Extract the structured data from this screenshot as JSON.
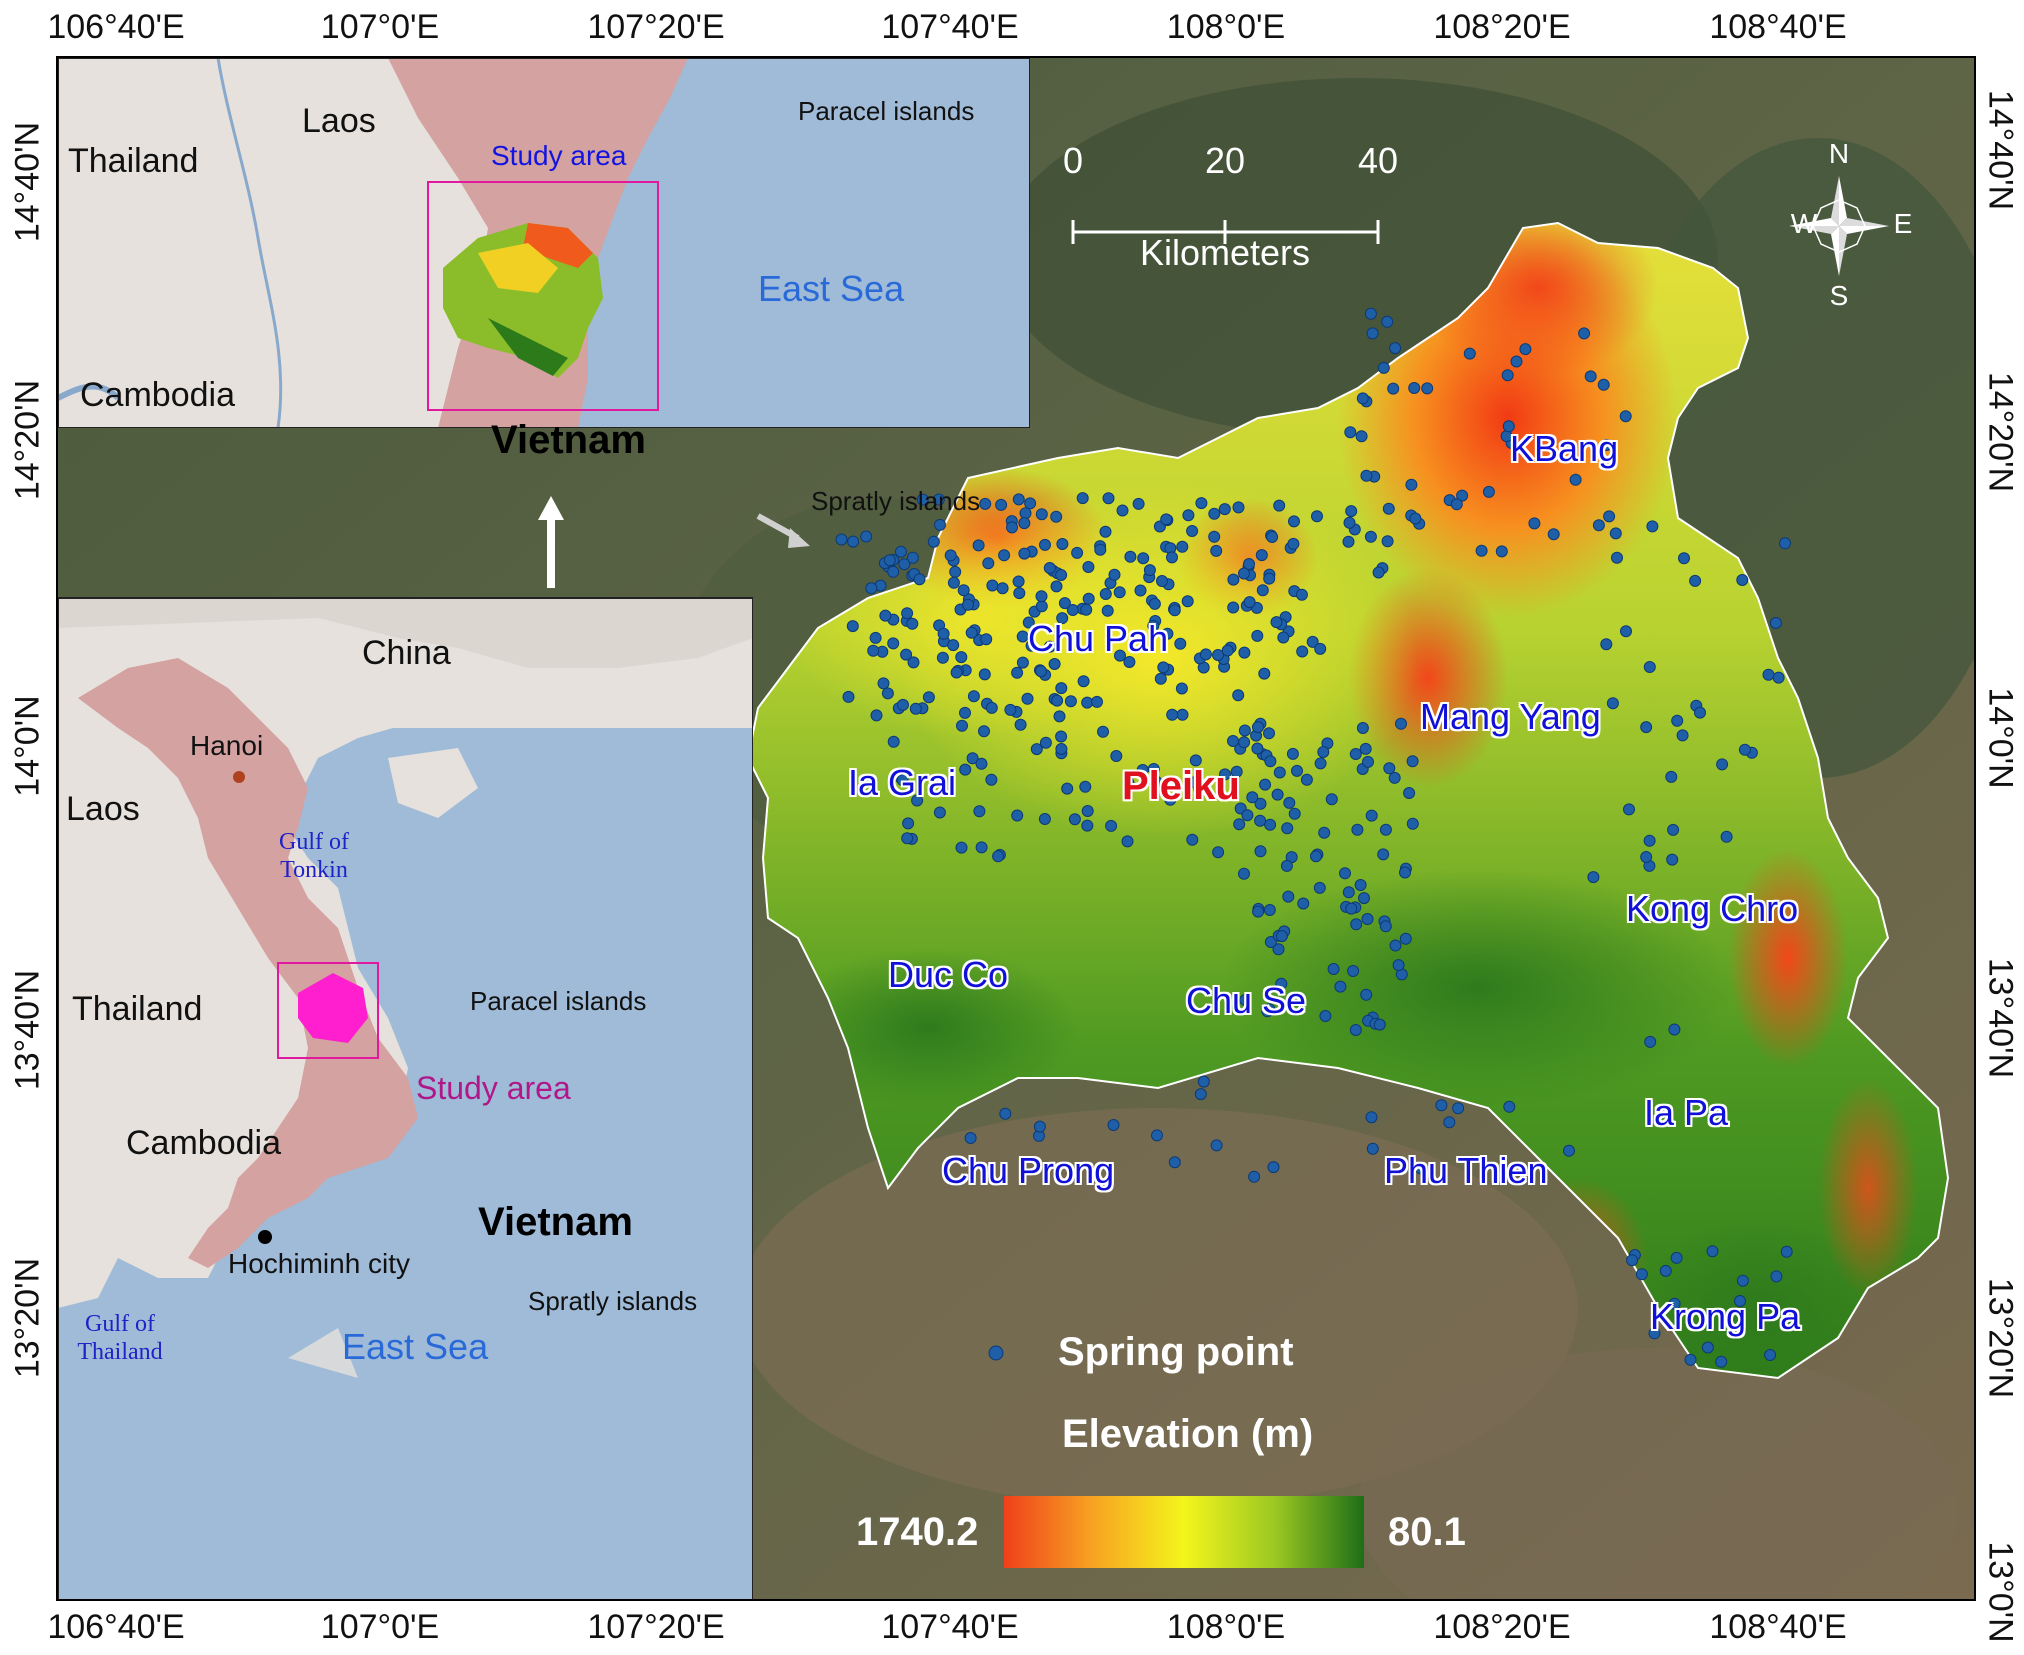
{
  "axes": {
    "top_ticks": [
      "106°40'E",
      "107°0'E",
      "107°20'E",
      "107°40'E",
      "108°0'E",
      "108°20'E",
      "108°40'E"
    ],
    "bottom_ticks": [
      "106°40'E",
      "107°0'E",
      "107°20'E",
      "107°40'E",
      "108°0'E",
      "108°20'E",
      "108°40'E"
    ],
    "left_ticks": [
      "14°40'N",
      "14°20'N",
      "14°0'N",
      "13°40'N",
      "13°20'N"
    ],
    "right_ticks": [
      "14°40'N",
      "14°20'N",
      "14°0'N",
      "13°40'N",
      "13°20'N",
      "13°0'N"
    ]
  },
  "inset_top": {
    "countries": [
      "Thailand",
      "Laos",
      "Cambodia"
    ],
    "country_main": "Vietnam",
    "study_area": "Study area",
    "sea": "East Sea",
    "islands": [
      "Paracel islands",
      "Spratly islands"
    ]
  },
  "inset_bottom": {
    "countries": [
      "China",
      "Laos",
      "Thailand",
      "Cambodia"
    ],
    "country_main": "Vietnam",
    "cities": [
      "Hanoi",
      "Hochiminh city"
    ],
    "gulfs": [
      "Gulf of",
      "Tonkin",
      "Gulf of",
      "Thailand"
    ],
    "study_area": "Study area",
    "sea": "East Sea",
    "islands": [
      "Paracel islands",
      "Spratly islands"
    ]
  },
  "districts": [
    {
      "name": "KBang",
      "style": "normal"
    },
    {
      "name": "Chu Pah",
      "style": "normal"
    },
    {
      "name": "Mang Yang",
      "style": "normal"
    },
    {
      "name": "Ia Grai",
      "style": "normal"
    },
    {
      "name": "Pleiku",
      "style": "capital"
    },
    {
      "name": "Kong Chro",
      "style": "normal"
    },
    {
      "name": "Duc Co",
      "style": "normal"
    },
    {
      "name": "Chu Se",
      "style": "normal"
    },
    {
      "name": "Ia Pa",
      "style": "normal"
    },
    {
      "name": "Chu Prong",
      "style": "normal"
    },
    {
      "name": "Phu Thien",
      "style": "normal"
    },
    {
      "name": "Krong Pa",
      "style": "normal"
    }
  ],
  "scale_bar": {
    "ticks": [
      "0",
      "20",
      "40"
    ],
    "unit": "Kilometers"
  },
  "north_arrow": {
    "N": "N",
    "S": "S",
    "E": "E",
    "W": "W",
    "icon": "compass-rose-icon"
  },
  "legend": {
    "spring_point_label": "Spring point",
    "elevation_title": "Elevation (m)",
    "max_value": "1740.2",
    "min_value": "80.1",
    "ramp_colors": [
      "#f0401a",
      "#f7a422",
      "#f4f51c",
      "#9cc922",
      "#1e6e18"
    ]
  },
  "colors": {
    "point": "#1f5fa8",
    "vietnam_fill": "#d4a2a0",
    "sea_fill": "#9fbbd8",
    "land_fill": "#e6e1dc",
    "study_box": "#e0199e"
  }
}
